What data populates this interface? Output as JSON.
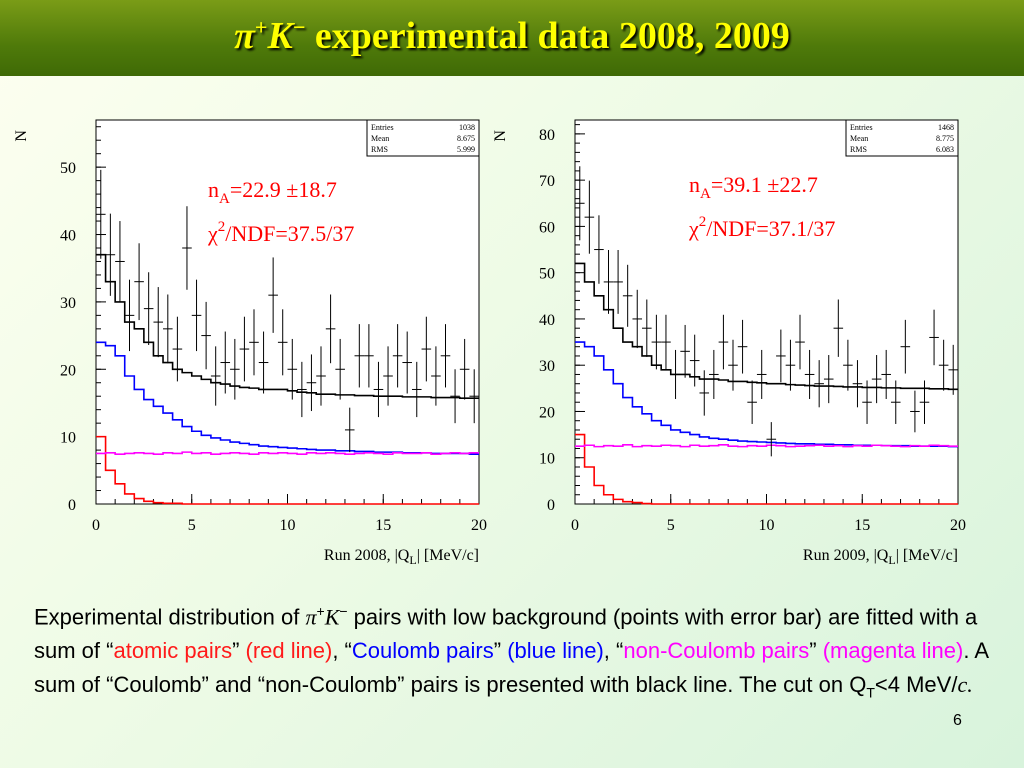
{
  "slide": {
    "title_pi": "π",
    "title_pi_sup": "+",
    "title_k": "K",
    "title_k_sup": "−",
    "title_rest": " experimental data 2008, 2009",
    "page_number": "6"
  },
  "caption": {
    "t1": "Experimental distribution of ",
    "pi": "π",
    "pi_sup": "+",
    "k": "K",
    "k_sup": "−",
    "t2": " pairs with low background (points with error bar) are fitted with a sum of “",
    "atomic": "atomic pairs",
    "t3": "” ",
    "red_line": "(red line)",
    "t4": ", “",
    "coulomb": "Coulomb pairs",
    "t5": "” ",
    "blue_line": "(blue line)",
    "t6": ", “",
    "noncoulomb": "non-Coulomb pairs",
    "t7": "” ",
    "mag_line": "(magenta line)",
    "t8": ". A sum of “Coulomb” and “non-Coulomb” pairs is presented with black line. The cut on Q",
    "qt_sub": "T",
    "t9": "<4 MeV/",
    "c_italic": "c."
  },
  "colors": {
    "atomic": "#ff0000",
    "coulomb": "#0000ff",
    "noncoulomb": "#ff00ff",
    "sum": "#000000",
    "title": "#ffff00"
  },
  "chart_data": [
    {
      "type": "histogram",
      "ylabel": "N",
      "xlabel_main": "Run 2008, |Q",
      "xlabel_sub": "L",
      "xlabel_end": "| [MeV/c]",
      "xlim": [
        0,
        20
      ],
      "ylim": [
        0,
        57
      ],
      "xticks": [
        0,
        5,
        10,
        15,
        20
      ],
      "yticks": [
        0,
        10,
        20,
        30,
        40,
        50
      ],
      "stats": {
        "rows": [
          [
            "Entries",
            "1038"
          ],
          [
            "Mean",
            "8.675"
          ],
          [
            "RMS",
            "5.999"
          ]
        ]
      },
      "fit_text": {
        "n": "n",
        "n_sub": "A",
        "n_rest": "=22.9 ±18.7",
        "chi": "χ",
        "chi_sup": "2",
        "chi_rest": "/NDF=37.5/37"
      },
      "bin_width": 0.5,
      "points": [
        43,
        37,
        36,
        28,
        33,
        29,
        27,
        26,
        23,
        38,
        28,
        25,
        19,
        21,
        20,
        23,
        24,
        21,
        31,
        24,
        20,
        17,
        18,
        19,
        26,
        20,
        11,
        22,
        22,
        17,
        19,
        22,
        21,
        17,
        23,
        19,
        22,
        16,
        20,
        16
      ],
      "errors": [
        6.6,
        6.1,
        6,
        5.3,
        5.7,
        5.4,
        5.2,
        5.1,
        4.8,
        6.2,
        5.3,
        5,
        4.4,
        4.6,
        4.5,
        4.8,
        4.9,
        4.6,
        5.6,
        4.9,
        4.5,
        4.1,
        4.2,
        4.4,
        5.1,
        4.5,
        3.3,
        4.7,
        4.7,
        4.1,
        4.4,
        4.7,
        4.6,
        4.1,
        4.8,
        4.4,
        4.7,
        4,
        4.5,
        4
      ],
      "series": [
        {
          "name": "atomic pairs",
          "color": "#ff0000",
          "values": [
            10,
            5,
            3,
            1.5,
            0.8,
            0.4,
            0.2,
            0.1,
            0.1,
            0,
            0,
            0,
            0,
            0,
            0,
            0,
            0,
            0,
            0,
            0,
            0,
            0,
            0,
            0,
            0,
            0,
            0,
            0,
            0,
            0,
            0,
            0,
            0,
            0,
            0,
            0,
            0,
            0,
            0,
            0
          ]
        },
        {
          "name": "Coulomb pairs",
          "color": "#0000ff",
          "values": [
            24,
            23.5,
            22,
            19,
            17,
            15.5,
            14.5,
            13.5,
            12.5,
            11.5,
            10.8,
            10.2,
            9.8,
            9.5,
            9.2,
            9,
            8.8,
            8.6,
            8.5,
            8.4,
            8.3,
            8.2,
            8.1,
            8,
            8,
            7.9,
            7.9,
            7.8,
            7.8,
            7.7,
            7.7,
            7.7,
            7.6,
            7.6,
            7.6,
            7.5,
            7.5,
            7.5,
            7.5,
            7.4
          ]
        },
        {
          "name": "non-Coulomb pairs",
          "color": "#ff00ff",
          "values": [
            7.5,
            7.6,
            7.4,
            7.5,
            7.6,
            7.5,
            7.4,
            7.6,
            7.5,
            7.7,
            7.5,
            7.6,
            7.4,
            7.5,
            7.6,
            7.5,
            7.4,
            7.6,
            7.5,
            7.6,
            7.5,
            7.4,
            7.6,
            7.5,
            7.6,
            7.5,
            7.4,
            7.5,
            7.6,
            7.5,
            7.4,
            7.6,
            7.5,
            7.5,
            7.6,
            7.4,
            7.5,
            7.6,
            7.5,
            7.6
          ]
        },
        {
          "name": "sum",
          "color": "#000000",
          "values": [
            37,
            33,
            30,
            27,
            26,
            24,
            22,
            21,
            20,
            19.5,
            19,
            18.5,
            18,
            17.8,
            17.5,
            17.3,
            17.2,
            17,
            17,
            17,
            16.8,
            16.6,
            16.5,
            16.3,
            16.3,
            16.2,
            16.2,
            16.1,
            16.1,
            16,
            16,
            16,
            15.9,
            15.9,
            15.9,
            15.8,
            15.8,
            15.8,
            15.7,
            15.7
          ]
        }
      ]
    },
    {
      "type": "histogram",
      "ylabel": "N",
      "xlabel_main": "Run 2009, |Q",
      "xlabel_sub": "L",
      "xlabel_end": "| [MeV/c]",
      "xlim": [
        0,
        20
      ],
      "ylim": [
        0,
        83
      ],
      "xticks": [
        0,
        5,
        10,
        15,
        20
      ],
      "yticks": [
        0,
        10,
        20,
        30,
        40,
        50,
        60,
        70,
        80
      ],
      "stats": {
        "rows": [
          [
            "Entries",
            "1468"
          ],
          [
            "Mean",
            "8.775"
          ],
          [
            "RMS",
            "6.083"
          ]
        ]
      },
      "fit_text": {
        "n": "n",
        "n_sub": "A",
        "n_rest": "=39.1 ±22.7",
        "chi": "χ",
        "chi_sup": "2",
        "chi_rest": "/NDF=37.1/37"
      },
      "bin_width": 0.5,
      "points": [
        65,
        62,
        55,
        48,
        48,
        45,
        40,
        38,
        35,
        35,
        28,
        33,
        31,
        24,
        28,
        35,
        30,
        34,
        22,
        28,
        14,
        32,
        30,
        35,
        28,
        26,
        27,
        38,
        30,
        26,
        22,
        27,
        28,
        22,
        34,
        20,
        22,
        36,
        30,
        29
      ],
      "errors": [
        8,
        7.9,
        7.4,
        6.9,
        6.9,
        6.7,
        6.3,
        6.2,
        5.9,
        5.9,
        5.3,
        5.7,
        5.6,
        4.9,
        5.3,
        5.9,
        5.5,
        5.8,
        4.7,
        5.3,
        3.7,
        5.7,
        5.5,
        5.9,
        5.3,
        5.1,
        5.2,
        6.2,
        5.5,
        5.1,
        4.7,
        5.2,
        5.3,
        4.7,
        5.8,
        4.5,
        4.7,
        6,
        5.5,
        5.4
      ],
      "series": [
        {
          "name": "atomic pairs",
          "color": "#ff0000",
          "values": [
            15,
            8,
            4,
            2,
            1,
            0.5,
            0.3,
            0.1,
            0,
            0,
            0,
            0,
            0,
            0,
            0,
            0,
            0,
            0,
            0,
            0,
            0,
            0,
            0,
            0,
            0,
            0,
            0,
            0,
            0,
            0,
            0,
            0,
            0,
            0,
            0,
            0,
            0,
            0,
            0,
            0
          ]
        },
        {
          "name": "Coulomb pairs",
          "color": "#0000ff",
          "values": [
            35,
            34,
            32,
            29,
            26,
            23,
            21,
            19.5,
            18,
            17,
            16,
            15.5,
            15,
            14.5,
            14.2,
            14,
            13.8,
            13.6,
            13.5,
            13.4,
            13.3,
            13.2,
            13.1,
            13,
            13,
            12.9,
            12.9,
            12.8,
            12.8,
            12.7,
            12.7,
            12.7,
            12.6,
            12.6,
            12.6,
            12.5,
            12.5,
            12.5,
            12.5,
            12.4
          ]
        },
        {
          "name": "non-Coulomb pairs",
          "color": "#ff00ff",
          "values": [
            12.5,
            12.7,
            12.4,
            12.6,
            12.5,
            12.8,
            12.4,
            12.6,
            12.5,
            12.7,
            12.6,
            12.4,
            12.7,
            12.5,
            12.6,
            12.8,
            12.5,
            12.4,
            12.6,
            12.5,
            12.7,
            12.6,
            12.4,
            12.5,
            12.6,
            12.7,
            12.5,
            12.6,
            12.4,
            12.6,
            12.5,
            12.7,
            12.6,
            12.5,
            12.4,
            12.6,
            12.5,
            12.7,
            12.6,
            12.5
          ]
        },
        {
          "name": "sum",
          "color": "#000000",
          "values": [
            52,
            48,
            45,
            42,
            38,
            35,
            34,
            32,
            30,
            29,
            28,
            28,
            27.5,
            27,
            27,
            26.8,
            26.5,
            26.5,
            26.3,
            26.2,
            26,
            26,
            25.8,
            25.7,
            25.6,
            25.5,
            25.5,
            25.4,
            25.3,
            25.3,
            25.2,
            25.2,
            25.1,
            25.1,
            25,
            25,
            25,
            24.9,
            24.9,
            24.8
          ]
        }
      ]
    }
  ]
}
